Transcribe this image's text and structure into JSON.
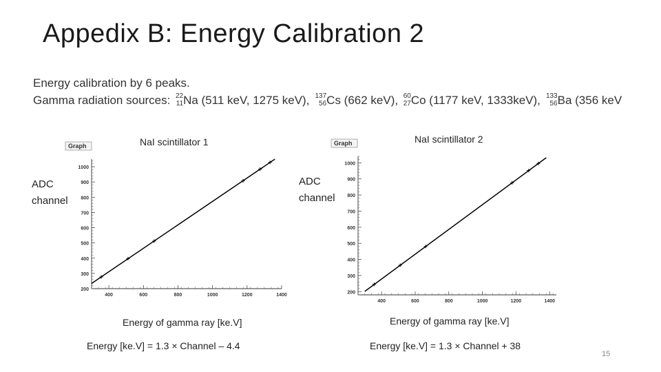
{
  "slide": {
    "title": "Appedix B: Energy Calibration 2",
    "bullet1": "Energy calibration by 6 peaks.",
    "bullet2_prefix": "Gamma radiation sources: ",
    "sources": [
      {
        "mass": "22",
        "z": "11",
        "symbol": "Na",
        "energies": " (511 keV, 1275 keV), "
      },
      {
        "mass": "137",
        "z": "56",
        "symbol": "Cs",
        "energies": " (662 keV), "
      },
      {
        "mass": "60",
        "z": "27",
        "symbol": "Co",
        "energies": " (1177 keV, 1333keV), "
      },
      {
        "mass": "133",
        "z": "56",
        "symbol": "Ba",
        "energies": " (356 keV"
      }
    ],
    "page_number": "15"
  },
  "plots": [
    {
      "label": "NaI scintillator 1",
      "graph_tab": "Graph",
      "y_axis_label_line1": "ADC",
      "y_axis_label_line2": "channel",
      "x_axis_label": "Energy of gamma ray [ke.V]",
      "formula": "Energy [ke.V] = 1.3 × Channel – 4.4"
    },
    {
      "label": "NaI scintillator 2",
      "graph_tab": "Graph",
      "y_axis_label_line1": "ADC",
      "y_axis_label_line2": "channel",
      "x_axis_label": "Energy of gamma ray [ke.V]",
      "formula": "Energy [ke.V] = 1.3 × Channel + 38"
    }
  ],
  "chart_data": [
    {
      "type": "scatter",
      "title": "Graph",
      "xlim": [
        300,
        1400
      ],
      "ylim": [
        200,
        1050
      ],
      "x_ticks": [
        "400",
        "600",
        "800",
        "1000",
        "1200",
        "1400"
      ],
      "y_ticks": [
        "200",
        "300",
        "400",
        "500",
        "600",
        "700",
        "800",
        "900",
        "1000"
      ],
      "points": [
        {
          "x": 356,
          "y": 277
        },
        {
          "x": 511,
          "y": 397
        },
        {
          "x": 662,
          "y": 512
        },
        {
          "x": 1177,
          "y": 908
        },
        {
          "x": 1275,
          "y": 984
        },
        {
          "x": 1333,
          "y": 1029
        }
      ],
      "fit": {
        "slope": 0.769,
        "intercept": 3.4,
        "x_range": [
          270,
          1420
        ]
      }
    },
    {
      "type": "scatter",
      "title": "Graph",
      "xlim": [
        260,
        1440
      ],
      "ylim": [
        180,
        1040
      ],
      "x_ticks": [
        "400",
        "600",
        "800",
        "1000",
        "1200",
        "1400"
      ],
      "y_ticks": [
        "200",
        "300",
        "400",
        "500",
        "600",
        "700",
        "800",
        "900",
        "1000"
      ],
      "points": [
        {
          "x": 356,
          "y": 245
        },
        {
          "x": 511,
          "y": 364
        },
        {
          "x": 662,
          "y": 480
        },
        {
          "x": 1177,
          "y": 876
        },
        {
          "x": 1275,
          "y": 952
        },
        {
          "x": 1333,
          "y": 996
        }
      ],
      "fit": {
        "slope": 0.769,
        "intercept": -29.2,
        "x_range": [
          300,
          1380
        ]
      }
    }
  ]
}
